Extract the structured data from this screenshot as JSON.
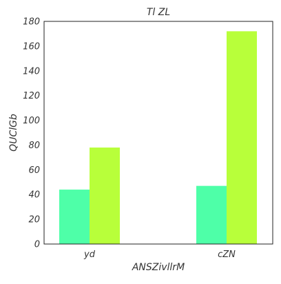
{
  "chart_data": {
    "type": "bar",
    "title": "Tl ZL",
    "xlabel": "ANSZivllrM",
    "ylabel": "QUClGb",
    "categories": [
      "yd",
      "cZN"
    ],
    "series": [
      {
        "values": [
          44,
          47
        ],
        "color": "#4effa8"
      },
      {
        "values": [
          78,
          172
        ],
        "color": "#b8ff3a"
      }
    ],
    "ylim": [
      0,
      180
    ],
    "yticks": [
      "0",
      "20",
      "40",
      "60",
      "80",
      "100",
      "120",
      "140",
      "160",
      "180"
    ],
    "grid": false,
    "legend": "none"
  }
}
